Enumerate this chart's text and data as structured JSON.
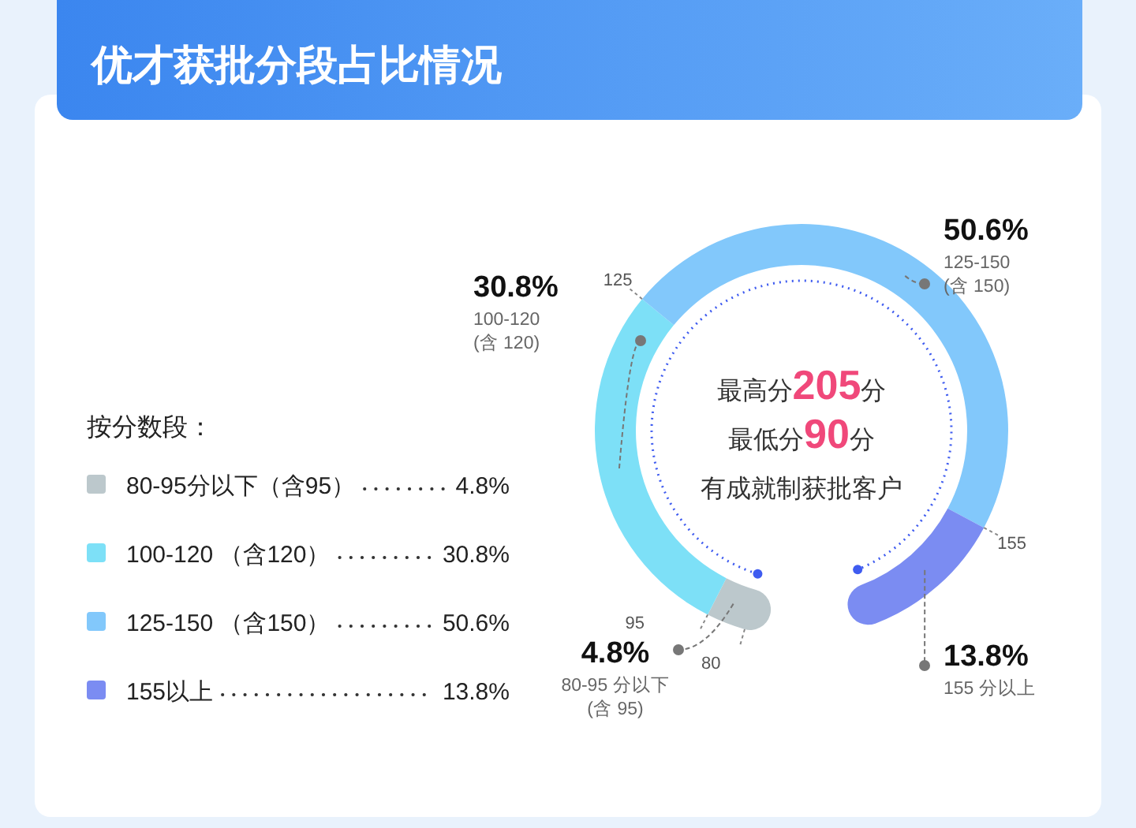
{
  "chart_data": {
    "type": "donut",
    "title": "优才获批分段占比情况",
    "legend_title": "按分数段：",
    "legend": "left",
    "categories": [
      "80-95分以下（含95）",
      "100-120 （含120）",
      "125-150 （含150）",
      "155以上"
    ],
    "values": [
      4.8,
      30.8,
      50.6,
      13.8
    ],
    "colors": [
      "#bcc8cc",
      "#7de0f7",
      "#82c8fb",
      "#7b8cf2"
    ],
    "value_labels": [
      "4.8%",
      "30.8%",
      "50.6%",
      "13.8%"
    ],
    "annotations": [
      "最高分205分",
      "最低分90分",
      "有成就制获批客户",
      "80",
      "95",
      "125",
      "155",
      "80-95 分以下(含 95)",
      "100-120 (含 120)",
      "125-150 (含 150)",
      "155 分以上"
    ]
  }
}
